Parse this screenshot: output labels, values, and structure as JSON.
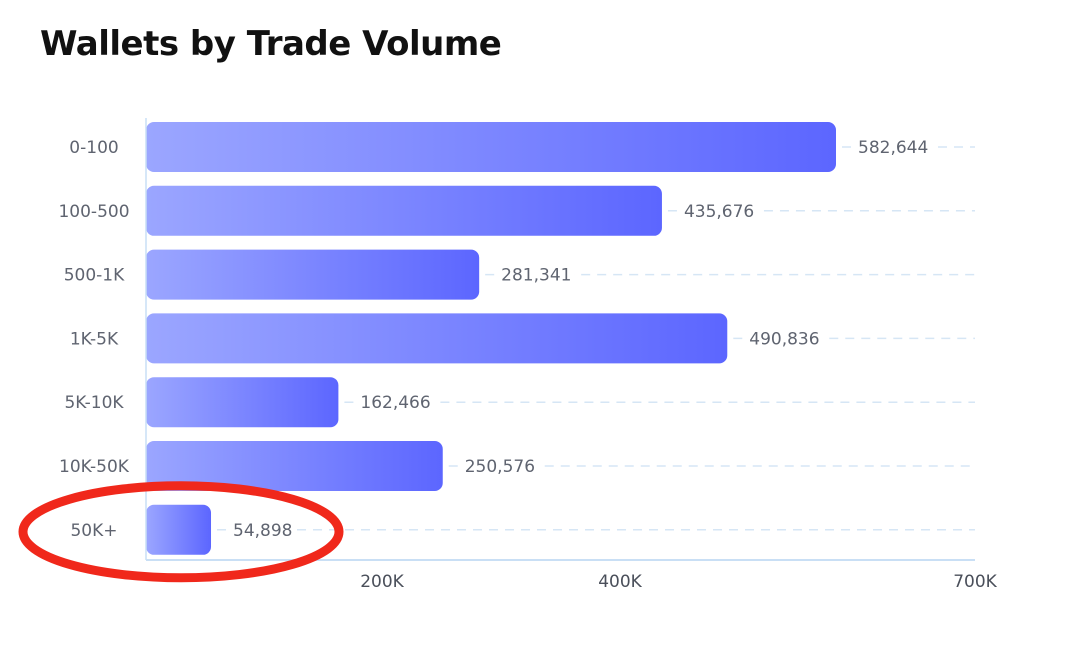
{
  "chart_data": {
    "type": "bar",
    "orientation": "horizontal",
    "title": "Wallets by Trade Volume",
    "xlabel": "",
    "ylabel": "",
    "categories": [
      "0-100",
      "100-500",
      "500-1K",
      "1K-5K",
      "5K-10K",
      "10K-50K",
      "50K+"
    ],
    "values": [
      582644,
      435676,
      281341,
      490836,
      162466,
      250576,
      54898
    ],
    "value_labels": [
      "582,644",
      "435,676",
      "281,341",
      "490,836",
      "162,466",
      "250,576",
      "54,898"
    ],
    "xlim": [
      0,
      700000
    ],
    "xticks": [
      {
        "value": 200000,
        "label": "200K"
      },
      {
        "value": 400000,
        "label": "400K"
      },
      {
        "value": 700000,
        "label": "700K"
      }
    ],
    "grid": "dashed horizontal lines per category",
    "legend": "none"
  },
  "annotation": {
    "type": "ellipse",
    "color": "#f0281b",
    "target_category": "50K+"
  },
  "colors": {
    "bar_gradient_start": "#9ba6ff",
    "bar_gradient_end": "#5c66ff",
    "grid": "#d6e6f5",
    "axis": "#c9dff5"
  }
}
